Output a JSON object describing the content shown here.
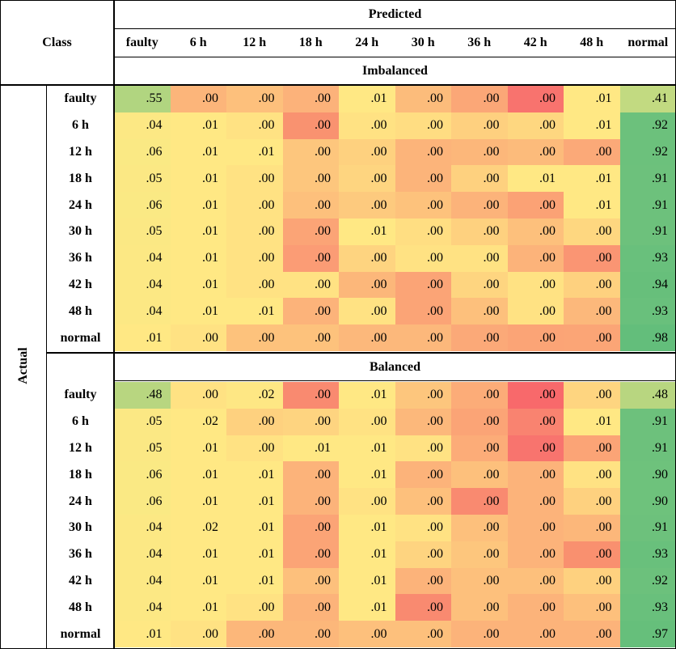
{
  "header": {
    "class": "Class",
    "predicted": "Predicted",
    "actual": "Actual",
    "columns": [
      "faulty",
      "6 h",
      "12 h",
      "18 h",
      "24 h",
      "30 h",
      "36 h",
      "42 h",
      "48 h",
      "normal"
    ]
  },
  "sections": [
    {
      "title": "Imbalanced",
      "rows": [
        {
          "label": "faulty",
          "cells": [
            ".55",
            ".00",
            ".00",
            ".00",
            ".01",
            ".00",
            ".00",
            ".00",
            ".01",
            ".41"
          ],
          "colors": [
            "#b1d580",
            "#fcb57a",
            "#fdc07c",
            "#fcb27a",
            "#ffe884",
            "#fcbc7b",
            "#fba777",
            "#f8736e",
            "#ffe884",
            "#c2da81"
          ]
        },
        {
          "label": "6 h",
          "cells": [
            ".04",
            ".01",
            ".00",
            ".00",
            ".00",
            ".00",
            ".00",
            ".00",
            ".01",
            ".92"
          ],
          "colors": [
            "#fce884",
            "#ffe884",
            "#ffe283",
            "#f99270",
            "#ffe283",
            "#ffdd82",
            "#fed07f",
            "#fed780",
            "#ffe884",
            "#6cc17c"
          ]
        },
        {
          "label": "12 h",
          "cells": [
            ".06",
            ".01",
            ".01",
            ".00",
            ".00",
            ".00",
            ".00",
            ".00",
            ".00",
            ".92"
          ],
          "colors": [
            "#fae984",
            "#ffe884",
            "#ffe884",
            "#fdc67d",
            "#fed17f",
            "#fcb47a",
            "#fcb77a",
            "#fcbb7b",
            "#fba978",
            "#6cc17c"
          ]
        },
        {
          "label": "18 h",
          "cells": [
            ".05",
            ".01",
            ".00",
            ".00",
            ".00",
            ".00",
            ".00",
            ".01",
            ".01",
            ".91"
          ],
          "colors": [
            "#fbe884",
            "#ffe884",
            "#ffe283",
            "#fdc67d",
            "#fed580",
            "#fcb47a",
            "#fed17f",
            "#ffe884",
            "#ffe884",
            "#6dc17c"
          ]
        },
        {
          "label": "24 h",
          "cells": [
            ".06",
            ".01",
            ".00",
            ".00",
            ".00",
            ".00",
            ".00",
            ".00",
            ".01",
            ".91"
          ],
          "colors": [
            "#fae984",
            "#ffe884",
            "#ffe283",
            "#fdc07c",
            "#fdca7e",
            "#fdc27c",
            "#fcb37a",
            "#fba275",
            "#ffe884",
            "#6dc17c"
          ]
        },
        {
          "label": "30 h",
          "cells": [
            ".05",
            ".01",
            ".00",
            ".00",
            ".01",
            ".00",
            ".00",
            ".00",
            ".00",
            ".91"
          ],
          "colors": [
            "#fbe884",
            "#ffe884",
            "#ffe283",
            "#fba476",
            "#ffe884",
            "#ffde82",
            "#fed17f",
            "#fdc07c",
            "#fed780",
            "#6dc17c"
          ]
        },
        {
          "label": "36 h",
          "cells": [
            ".04",
            ".01",
            ".00",
            ".00",
            ".00",
            ".00",
            ".00",
            ".00",
            ".00",
            ".93"
          ],
          "colors": [
            "#fce884",
            "#ffe884",
            "#ffe283",
            "#fb9c75",
            "#fed480",
            "#ffe283",
            "#ffe283",
            "#fcb37a",
            "#fa9573",
            "#69c07c"
          ]
        },
        {
          "label": "42 h",
          "cells": [
            ".04",
            ".01",
            ".00",
            ".00",
            ".00",
            ".00",
            ".00",
            ".00",
            ".00",
            ".94"
          ],
          "colors": [
            "#fce884",
            "#ffe884",
            "#ffe283",
            "#ffe283",
            "#fcb77a",
            "#fba476",
            "#fed580",
            "#ffe283",
            "#fed17f",
            "#67bf7b"
          ]
        },
        {
          "label": "48 h",
          "cells": [
            ".04",
            ".01",
            ".01",
            ".00",
            ".00",
            ".00",
            ".00",
            ".00",
            ".00",
            ".93"
          ],
          "colors": [
            "#fce884",
            "#ffe884",
            "#ffe884",
            "#fcb37a",
            "#ffe283",
            "#fba476",
            "#fdc07c",
            "#ffe283",
            "#fcb87b",
            "#69c07c"
          ]
        },
        {
          "label": "normal",
          "cells": [
            ".01",
            ".00",
            ".00",
            ".00",
            ".00",
            ".00",
            ".00",
            ".00",
            ".00",
            ".98"
          ],
          "colors": [
            "#ffe884",
            "#ffe283",
            "#fdc27c",
            "#fdc27c",
            "#fcb87b",
            "#fcb87b",
            "#fba978",
            "#fba476",
            "#fba576",
            "#63be7b"
          ]
        }
      ]
    },
    {
      "title": "Balanced",
      "rows": [
        {
          "label": "faulty",
          "cells": [
            ".48",
            ".00",
            ".02",
            ".00",
            ".01",
            ".00",
            ".00",
            ".00",
            ".00",
            ".48"
          ],
          "colors": [
            "#b8d680",
            "#ffe283",
            "#fee784",
            "#f98a70",
            "#ffe884",
            "#fdc67d",
            "#fcac78",
            "#f8696b",
            "#fed580",
            "#b8d680"
          ]
        },
        {
          "label": "6 h",
          "cells": [
            ".05",
            ".02",
            ".00",
            ".00",
            ".00",
            ".00",
            ".00",
            ".00",
            ".01",
            ".91"
          ],
          "colors": [
            "#fbe884",
            "#ffe884",
            "#fed17f",
            "#fed480",
            "#ffe283",
            "#fcb87b",
            "#fba476",
            "#f98370",
            "#ffe884",
            "#6dc17c"
          ]
        },
        {
          "label": "12 h",
          "cells": [
            ".05",
            ".01",
            ".00",
            ".01",
            ".01",
            ".00",
            ".00",
            ".00",
            ".00",
            ".91"
          ],
          "colors": [
            "#fbe884",
            "#ffe884",
            "#ffe283",
            "#ffe884",
            "#ffe884",
            "#ffe283",
            "#fcac78",
            "#f8746e",
            "#fba476",
            "#6dc17c"
          ]
        },
        {
          "label": "18 h",
          "cells": [
            ".06",
            ".01",
            ".01",
            ".00",
            ".01",
            ".00",
            ".00",
            ".00",
            ".00",
            ".90"
          ],
          "colors": [
            "#fae984",
            "#ffe884",
            "#ffe884",
            "#fcb37a",
            "#ffe884",
            "#fcb37a",
            "#fdc07c",
            "#fcb37a",
            "#ffe283",
            "#6ec27c"
          ]
        },
        {
          "label": "24 h",
          "cells": [
            ".06",
            ".01",
            ".01",
            ".00",
            ".00",
            ".00",
            ".00",
            ".00",
            ".00",
            ".90"
          ],
          "colors": [
            "#fae984",
            "#ffe884",
            "#ffe884",
            "#fcb37a",
            "#ffe283",
            "#fdc07c",
            "#f98a70",
            "#fcb37a",
            "#fed17f",
            "#6ec27c"
          ]
        },
        {
          "label": "30 h",
          "cells": [
            ".04",
            ".02",
            ".01",
            ".00",
            ".01",
            ".00",
            ".00",
            ".00",
            ".00",
            ".91"
          ],
          "colors": [
            "#fce884",
            "#ffe884",
            "#ffe884",
            "#fba476",
            "#ffe884",
            "#ffe283",
            "#fdc07c",
            "#fcb37a",
            "#fcb77a",
            "#6dc17c"
          ]
        },
        {
          "label": "36 h",
          "cells": [
            ".04",
            ".01",
            ".01",
            ".00",
            ".01",
            ".00",
            ".00",
            ".00",
            ".00",
            ".93"
          ],
          "colors": [
            "#fce884",
            "#ffe884",
            "#ffe884",
            "#fba476",
            "#ffe884",
            "#fed480",
            "#fdc67d",
            "#fcb37a",
            "#f9906f",
            "#69c07c"
          ]
        },
        {
          "label": "42 h",
          "cells": [
            ".04",
            ".01",
            ".01",
            ".00",
            ".01",
            ".00",
            ".00",
            ".00",
            ".00",
            ".92"
          ],
          "colors": [
            "#fce884",
            "#ffe884",
            "#ffe884",
            "#fdc07c",
            "#ffe884",
            "#fcb37a",
            "#fdc07c",
            "#fdc07c",
            "#fed17f",
            "#6cc17c"
          ]
        },
        {
          "label": "48 h",
          "cells": [
            ".04",
            ".01",
            ".00",
            ".00",
            ".01",
            ".00",
            ".00",
            ".00",
            ".00",
            ".93"
          ],
          "colors": [
            "#fce884",
            "#ffe884",
            "#ffe283",
            "#fcb37a",
            "#ffe884",
            "#f98a70",
            "#fdc07c",
            "#fcb37a",
            "#fdc07c",
            "#69c07c"
          ]
        },
        {
          "label": "normal",
          "cells": [
            ".01",
            ".00",
            ".00",
            ".00",
            ".00",
            ".00",
            ".00",
            ".00",
            ".00",
            ".97"
          ],
          "colors": [
            "#ffe884",
            "#ffe283",
            "#fcb77a",
            "#fcb77a",
            "#fdc07c",
            "#fdc07c",
            "#fcb37a",
            "#fcb37a",
            "#fcb37a",
            "#66bf7b"
          ]
        }
      ]
    }
  ]
}
